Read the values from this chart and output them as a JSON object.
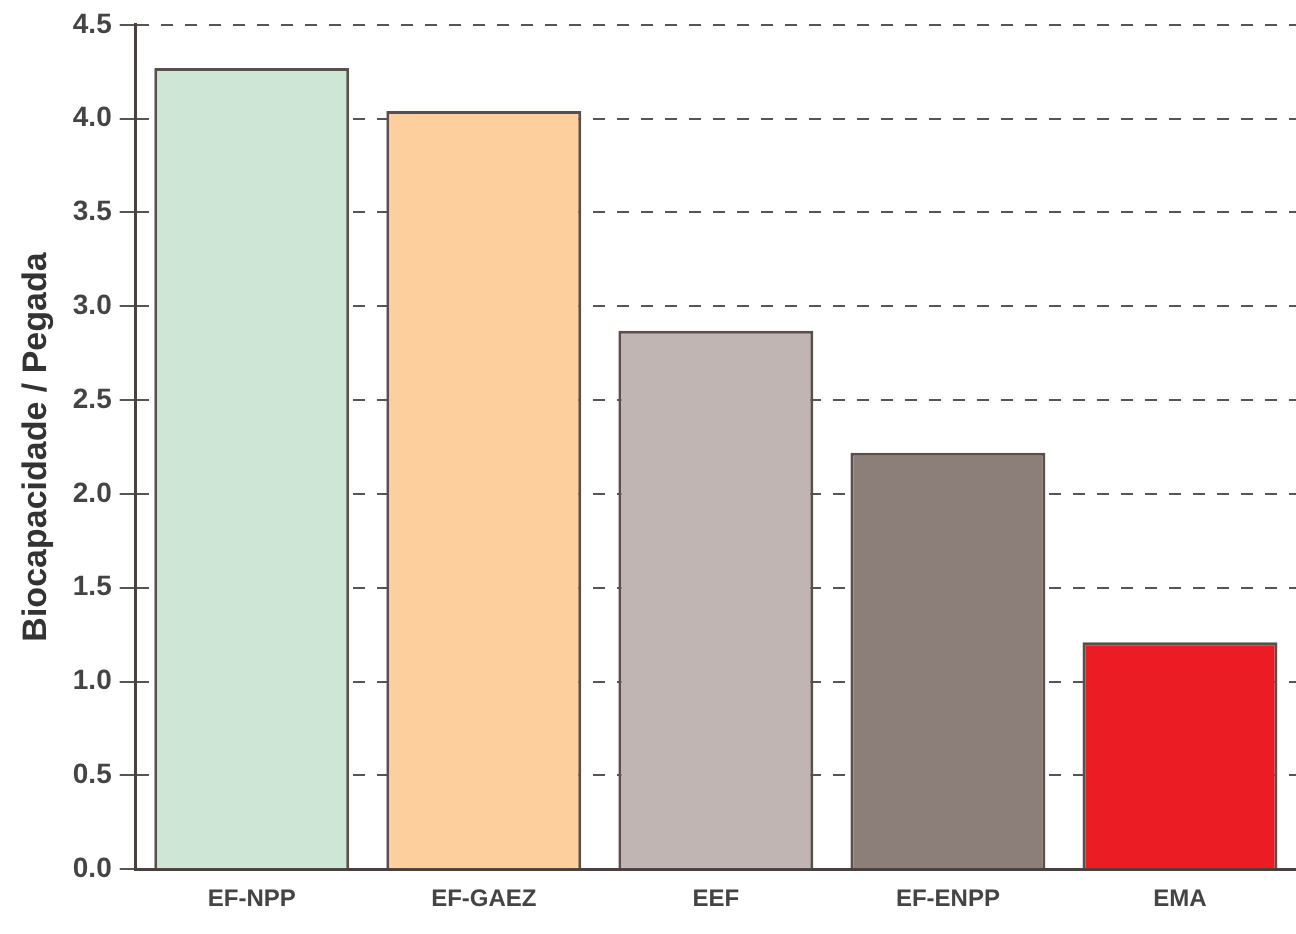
{
  "chart_data": {
    "type": "bar",
    "ylabel": "Biocapacidade / Pegada",
    "categories": [
      "EF-NPP",
      "EF-GAEZ",
      "EEF",
      "EF-ENPP",
      "EMA"
    ],
    "values": [
      4.27,
      4.04,
      2.87,
      2.22,
      1.21
    ],
    "colors": [
      "#cde6d5",
      "#fccf9c",
      "#c0b5b2",
      "#8c7e79",
      "#ec1c24"
    ],
    "ylim": [
      0,
      4.5
    ],
    "yticks": [
      {
        "value": 0,
        "label": "0.0"
      },
      {
        "value": 0.5,
        "label": "0.5"
      },
      {
        "value": 1,
        "label": "1.0"
      },
      {
        "value": 1.5,
        "label": "1.5"
      },
      {
        "value": 2,
        "label": "2.0"
      },
      {
        "value": 2.5,
        "label": "2.5"
      },
      {
        "value": 3,
        "label": "3.0"
      },
      {
        "value": 3.5,
        "label": "3.5"
      },
      {
        "value": 4,
        "label": "4.0"
      },
      {
        "value": 4.5,
        "label": "4.5"
      }
    ],
    "grid": "y"
  }
}
